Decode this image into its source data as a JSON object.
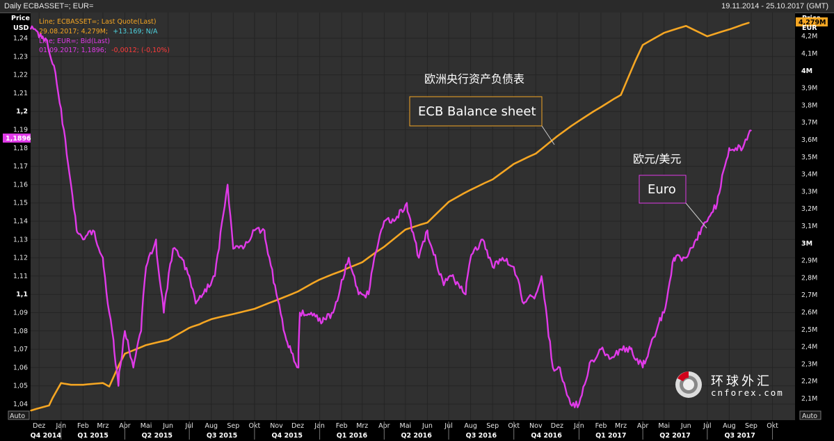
{
  "header": {
    "title": "Daily ECBASSET=; EUR=",
    "date_range": "19.11.2014 - 25.10.2017 (GMT)"
  },
  "left_axis": {
    "title1": "Price",
    "title2": "USD",
    "badge": "1,1896",
    "ticks": [
      "1,04",
      "1,05",
      "1,06",
      "1,07",
      "1,08",
      "1,09",
      "1,1",
      "1,11",
      "1,12",
      "1,13",
      "1,14",
      "1,15",
      "1,16",
      "1,17",
      "1,18",
      "1,19",
      "1,2",
      "1,21",
      "1,22",
      "1,23",
      "1,24"
    ]
  },
  "right_axis": {
    "title1": "Price",
    "title2": "EUR",
    "badge": "4,279M",
    "ticks": [
      "2,1M",
      "2,2M",
      "2,3M",
      "2,4M",
      "2,5M",
      "2,6M",
      "2,7M",
      "2,8M",
      "2,9M",
      "3M",
      "3,1M",
      "3,2M",
      "3,3M",
      "3,4M",
      "3,5M",
      "3,6M",
      "3,7M",
      "3,8M",
      "3,9M",
      "4M",
      "4,1M",
      "4,2M"
    ]
  },
  "auto_left": "Auto",
  "auto_right": "Auto",
  "legend": {
    "ecb_line1": "Line; ECBASSET=; Last Quote(Last)",
    "ecb_line2_a": "29.08.2017; 4,279M;",
    "ecb_line2_b": "+13.169; N/A",
    "eur_line1": "Line; EUR=; Bid(Last)",
    "eur_line2_a": "01.09.2017; 1,1896;",
    "eur_line2_b": "-0,0012; (-0,10%)"
  },
  "annotations": {
    "ecb_cn": "欧洲央行资产负债表",
    "ecb_box": "ECB Balance sheet",
    "eur_cn": "欧元/美元",
    "eur_box": "Euro"
  },
  "logo": {
    "cn": "环球外汇",
    "en": "cnforex.com"
  },
  "colors": {
    "ecb": "#f5a623",
    "eur": "#e03ae8",
    "background": "#303030",
    "grid": "#1a1a1a"
  },
  "chart_data": {
    "type": "line",
    "x_range": [
      "2014-11-19",
      "2017-10-25"
    ],
    "month_labels": [
      "Dez",
      "Jan",
      "Feb",
      "Mrz",
      "Apr",
      "Mai",
      "Jun",
      "Jul",
      "Aug",
      "Sep",
      "Okt",
      "Nov",
      "Dez",
      "Jan",
      "Feb",
      "Mrz",
      "Apr",
      "Mai",
      "Jun",
      "Jul",
      "Aug",
      "Sep",
      "Okt",
      "Nov",
      "Dez",
      "Jan",
      "Feb",
      "Mrz",
      "Apr",
      "Mai",
      "Jun",
      "Jul",
      "Aug",
      "Sep",
      "Okt"
    ],
    "quarter_labels": [
      "Q4 2014",
      "Q1 2015",
      "Q2 2015",
      "Q3 2015",
      "Q4 2015",
      "Q1 2016",
      "Q2 2016",
      "Q3 2016",
      "Q4 2016",
      "Q1 2017",
      "Q2 2017",
      "Q3 2017"
    ],
    "series": [
      {
        "name": "ECBASSET=",
        "axis": "right",
        "unit": "EUR",
        "x": [
          "2014-11-19",
          "2014-12-15",
          "2015-01-01",
          "2015-01-15",
          "2015-02-01",
          "2015-03-01",
          "2015-03-10",
          "2015-04-01",
          "2015-05-01",
          "2015-06-01",
          "2015-07-01",
          "2015-07-15",
          "2015-08-01",
          "2015-09-01",
          "2015-10-01",
          "2015-11-01",
          "2015-12-01",
          "2016-01-01",
          "2016-02-01",
          "2016-03-01",
          "2016-04-01",
          "2016-05-01",
          "2016-06-01",
          "2016-07-01",
          "2016-08-01",
          "2016-09-01",
          "2016-10-01",
          "2016-11-01",
          "2016-12-01",
          "2017-01-01",
          "2017-02-01",
          "2017-03-01",
          "2017-04-01",
          "2017-05-01",
          "2017-06-01",
          "2017-07-01",
          "2017-08-01",
          "2017-08-29"
        ],
        "y": [
          2.03,
          2.06,
          2.19,
          2.18,
          2.18,
          2.19,
          2.17,
          2.36,
          2.41,
          2.44,
          2.51,
          2.53,
          2.56,
          2.59,
          2.62,
          2.67,
          2.72,
          2.79,
          2.84,
          2.89,
          2.98,
          3.08,
          3.12,
          3.24,
          3.31,
          3.37,
          3.46,
          3.52,
          3.62,
          3.71,
          3.79,
          3.86,
          4.15,
          4.22,
          4.26,
          4.2,
          4.24,
          4.279
        ]
      },
      {
        "name": "EUR=",
        "axis": "left",
        "unit": "USD",
        "x": [
          "2014-11-19",
          "2014-11-25",
          "2014-12-05",
          "2014-12-10",
          "2014-12-22",
          "2015-01-05",
          "2015-01-15",
          "2015-01-23",
          "2015-02-01",
          "2015-02-15",
          "2015-03-01",
          "2015-03-10",
          "2015-03-16",
          "2015-03-23",
          "2015-04-01",
          "2015-04-13",
          "2015-04-24",
          "2015-05-01",
          "2015-05-15",
          "2015-05-26",
          "2015-06-08",
          "2015-06-20",
          "2015-07-01",
          "2015-07-10",
          "2015-07-20",
          "2015-08-06",
          "2015-08-24",
          "2015-09-01",
          "2015-09-15",
          "2015-10-01",
          "2015-10-15",
          "2015-10-22",
          "2015-11-01",
          "2015-11-15",
          "2015-12-02",
          "2015-12-04",
          "2015-12-20",
          "2016-01-05",
          "2016-01-20",
          "2016-02-11",
          "2016-02-25",
          "2016-03-10",
          "2016-03-18",
          "2016-04-01",
          "2016-04-15",
          "2016-05-03",
          "2016-05-20",
          "2016-06-01",
          "2016-06-24",
          "2016-07-05",
          "2016-07-25",
          "2016-08-01",
          "2016-08-18",
          "2016-09-01",
          "2016-09-15",
          "2016-10-01",
          "2016-10-15",
          "2016-11-01",
          "2016-11-09",
          "2016-11-25",
          "2016-12-05",
          "2016-12-15",
          "2016-12-20",
          "2017-01-01",
          "2017-01-15",
          "2017-02-01",
          "2017-02-15",
          "2017-03-01",
          "2017-03-15",
          "2017-04-01",
          "2017-04-10",
          "2017-04-24",
          "2017-05-01",
          "2017-05-15",
          "2017-06-01",
          "2017-06-15",
          "2017-07-01",
          "2017-07-15",
          "2017-08-01",
          "2017-08-10",
          "2017-08-20",
          "2017-09-01"
        ],
        "y": [
          1.245,
          1.245,
          1.24,
          1.24,
          1.225,
          1.19,
          1.16,
          1.135,
          1.13,
          1.135,
          1.12,
          1.09,
          1.075,
          1.05,
          1.08,
          1.06,
          1.08,
          1.115,
          1.13,
          1.09,
          1.125,
          1.12,
          1.11,
          1.095,
          1.1,
          1.11,
          1.16,
          1.125,
          1.125,
          1.135,
          1.135,
          1.12,
          1.1,
          1.075,
          1.06,
          1.09,
          1.09,
          1.085,
          1.09,
          1.12,
          1.1,
          1.1,
          1.12,
          1.14,
          1.14,
          1.15,
          1.12,
          1.135,
          1.105,
          1.11,
          1.1,
          1.12,
          1.13,
          1.115,
          1.12,
          1.115,
          1.095,
          1.1,
          1.11,
          1.06,
          1.06,
          1.045,
          1.04,
          1.04,
          1.06,
          1.07,
          1.065,
          1.07,
          1.07,
          1.06,
          1.07,
          1.085,
          1.09,
          1.12,
          1.12,
          1.13,
          1.14,
          1.15,
          1.18,
          1.18,
          1.18,
          1.1896
        ]
      }
    ]
  }
}
